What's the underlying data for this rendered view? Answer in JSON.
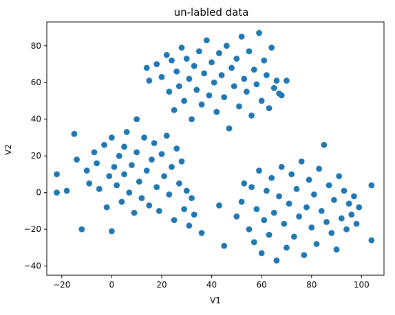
{
  "chart_data": {
    "type": "scatter",
    "title": "un-labled data",
    "xlabel": "V1",
    "ylabel": "V2",
    "xlim": [
      -26,
      109
    ],
    "ylim": [
      -45,
      93
    ],
    "xticks": [
      -20,
      0,
      20,
      40,
      60,
      80,
      100
    ],
    "yticks": [
      -40,
      -20,
      0,
      20,
      40,
      60,
      80
    ],
    "xtick_labels": [
      "−20",
      "0",
      "20",
      "40",
      "60",
      "80",
      "100"
    ],
    "ytick_labels": [
      "−40",
      "−20",
      "0",
      "20",
      "40",
      "60",
      "80"
    ],
    "grid": false,
    "legend": "none",
    "color": "#1f77b4",
    "series": [
      {
        "points": [
          [
            -22,
            10
          ],
          [
            -22,
            0
          ],
          [
            -18,
            1
          ],
          [
            -15,
            32
          ],
          [
            -14,
            18
          ],
          [
            -12,
            -20
          ],
          [
            -10,
            12
          ],
          [
            -9,
            5
          ],
          [
            -7,
            22
          ],
          [
            -6,
            16
          ],
          [
            -5,
            2
          ],
          [
            -3,
            26
          ],
          [
            -2,
            -8
          ],
          [
            -1,
            9
          ],
          [
            0,
            30
          ],
          [
            0,
            -21
          ],
          [
            1,
            14
          ],
          [
            2,
            4
          ],
          [
            3,
            20
          ],
          [
            4,
            -5
          ],
          [
            5,
            25
          ],
          [
            5,
            10
          ],
          [
            6,
            33
          ],
          [
            7,
            0
          ],
          [
            8,
            15
          ],
          [
            9,
            -11
          ],
          [
            10,
            40
          ],
          [
            10,
            22
          ],
          [
            11,
            6
          ],
          [
            12,
            -3
          ],
          [
            13,
            30
          ],
          [
            14,
            12
          ],
          [
            15,
            -7
          ],
          [
            16,
            18
          ],
          [
            17,
            27
          ],
          [
            18,
            3
          ],
          [
            19,
            -10
          ],
          [
            20,
            21
          ],
          [
            21,
            9
          ],
          [
            22,
            31
          ],
          [
            23,
            -1
          ],
          [
            24,
            14
          ],
          [
            25,
            -15
          ],
          [
            26,
            24
          ],
          [
            27,
            5
          ],
          [
            28,
            17
          ],
          [
            29,
            -9
          ],
          [
            30,
            1
          ],
          [
            31,
            -18
          ],
          [
            32,
            -3
          ],
          [
            33,
            -12
          ],
          [
            14,
            68
          ],
          [
            15,
            61
          ],
          [
            18,
            70
          ],
          [
            20,
            63
          ],
          [
            22,
            75
          ],
          [
            23,
            55
          ],
          [
            24,
            72
          ],
          [
            25,
            45
          ],
          [
            26,
            66
          ],
          [
            27,
            58
          ],
          [
            28,
            79
          ],
          [
            29,
            50
          ],
          [
            30,
            73
          ],
          [
            31,
            62
          ],
          [
            32,
            40
          ],
          [
            33,
            69
          ],
          [
            34,
            56
          ],
          [
            35,
            77
          ],
          [
            36,
            48
          ],
          [
            37,
            65
          ],
          [
            38,
            83
          ],
          [
            39,
            53
          ],
          [
            40,
            71
          ],
          [
            41,
            60
          ],
          [
            42,
            44
          ],
          [
            43,
            76
          ],
          [
            44,
            64
          ],
          [
            45,
            52
          ],
          [
            46,
            80
          ],
          [
            47,
            35
          ],
          [
            48,
            68
          ],
          [
            49,
            58
          ],
          [
            50,
            73
          ],
          [
            51,
            47
          ],
          [
            52,
            85
          ],
          [
            53,
            62
          ],
          [
            54,
            55
          ],
          [
            55,
            77
          ],
          [
            56,
            42
          ],
          [
            57,
            67
          ],
          [
            58,
            59
          ],
          [
            59,
            87
          ],
          [
            60,
            50
          ],
          [
            61,
            72
          ],
          [
            62,
            64
          ],
          [
            63,
            46
          ],
          [
            64,
            79
          ],
          [
            65,
            57
          ],
          [
            66,
            61
          ],
          [
            67,
            54
          ],
          [
            68,
            53
          ],
          [
            70,
            61
          ],
          [
            36,
            -22
          ],
          [
            43,
            -7
          ],
          [
            45,
            -29
          ],
          [
            50,
            -13
          ],
          [
            52,
            -5
          ],
          [
            53,
            5
          ],
          [
            55,
            -20
          ],
          [
            56,
            3
          ],
          [
            57,
            -27
          ],
          [
            58,
            -9
          ],
          [
            59,
            12
          ],
          [
            60,
            -33
          ],
          [
            61,
            -15
          ],
          [
            62,
            1
          ],
          [
            63,
            -23
          ],
          [
            64,
            8
          ],
          [
            65,
            -11
          ],
          [
            66,
            -37
          ],
          [
            67,
            -2
          ],
          [
            68,
            14
          ],
          [
            69,
            -17
          ],
          [
            70,
            -30
          ],
          [
            71,
            -6
          ],
          [
            72,
            10
          ],
          [
            73,
            -24
          ],
          [
            74,
            2
          ],
          [
            75,
            -13
          ],
          [
            76,
            17
          ],
          [
            77,
            -34
          ],
          [
            78,
            -8
          ],
          [
            79,
            7
          ],
          [
            80,
            -19
          ],
          [
            81,
            -1
          ],
          [
            82,
            -28
          ],
          [
            83,
            13
          ],
          [
            84,
            -10
          ],
          [
            85,
            26
          ],
          [
            86,
            -16
          ],
          [
            87,
            4
          ],
          [
            88,
            -22
          ],
          [
            89,
            -4
          ],
          [
            90,
            -31
          ],
          [
            91,
            9
          ],
          [
            92,
            -14
          ],
          [
            93,
            1
          ],
          [
            94,
            -20
          ],
          [
            95,
            -6
          ],
          [
            96,
            -12
          ],
          [
            97,
            -2
          ],
          [
            98,
            -17
          ],
          [
            99,
            -8
          ],
          [
            104,
            4
          ],
          [
            104,
            -26
          ]
        ]
      }
    ]
  }
}
